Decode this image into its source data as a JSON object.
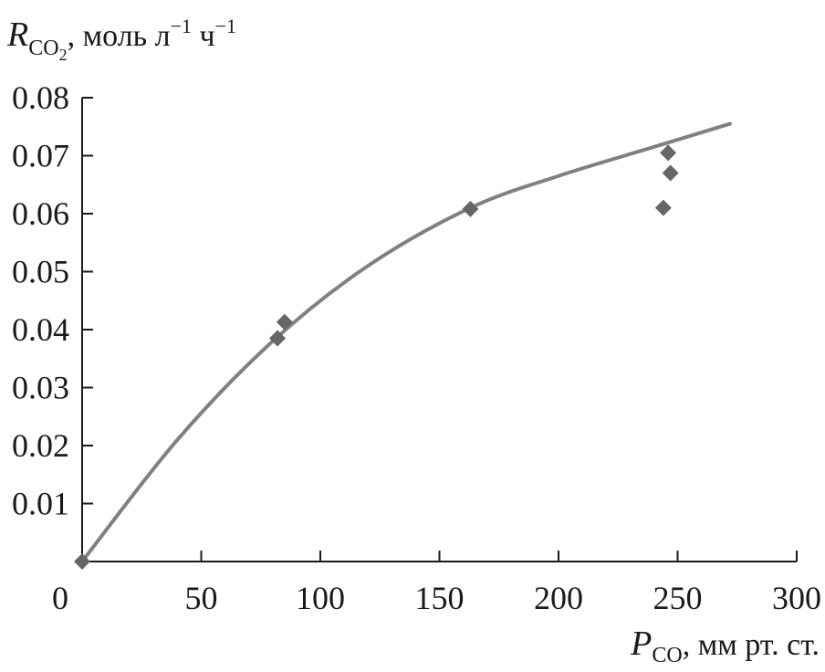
{
  "chart_data": {
    "type": "scatter",
    "ylabel": {
      "symbol": "R",
      "subscript": "CO",
      "subscript2": "2",
      "units_a": ", моль л",
      "exp1": "−1",
      "units_b": " ч",
      "exp2": "−1"
    },
    "xlabel": {
      "symbol": "P",
      "subscript": "CO",
      "units": ", мм рт. ст."
    },
    "xlim": [
      0,
      300
    ],
    "ylim": [
      0,
      0.08
    ],
    "x_ticks": [
      0,
      50,
      100,
      150,
      200,
      250,
      300
    ],
    "x_tick_labels": [
      "0",
      "50",
      "100",
      "150",
      "200",
      "250",
      "300"
    ],
    "y_ticks": [
      0.01,
      0.02,
      0.03,
      0.04,
      0.05,
      0.06,
      0.07,
      0.08
    ],
    "y_tick_labels": [
      "0.01",
      "0.02",
      "0.03",
      "0.04",
      "0.05",
      "0.06",
      "0.07",
      "0.08"
    ],
    "grid": false,
    "marker_color": "#666666",
    "line_color": "#808080",
    "series": [
      {
        "kind": "markers",
        "marker": "diamond",
        "points": [
          {
            "x": 0,
            "y": 0.0
          },
          {
            "x": 82,
            "y": 0.0385
          },
          {
            "x": 85,
            "y": 0.0413
          },
          {
            "x": 163,
            "y": 0.0608
          },
          {
            "x": 244,
            "y": 0.061
          },
          {
            "x": 246,
            "y": 0.0705
          },
          {
            "x": 247,
            "y": 0.067
          }
        ]
      },
      {
        "kind": "line",
        "points": [
          {
            "x": 0,
            "y": 0.0
          },
          {
            "x": 40,
            "y": 0.021
          },
          {
            "x": 80,
            "y": 0.038
          },
          {
            "x": 120,
            "y": 0.051
          },
          {
            "x": 163,
            "y": 0.061
          },
          {
            "x": 200,
            "y": 0.0665
          },
          {
            "x": 240,
            "y": 0.0715
          },
          {
            "x": 272,
            "y": 0.0755
          }
        ]
      }
    ]
  }
}
